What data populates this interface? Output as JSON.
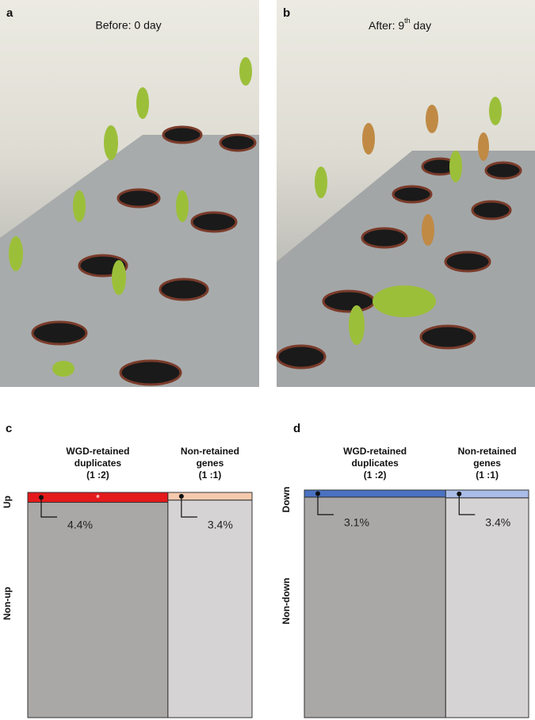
{
  "panels": [
    {
      "letter": "a",
      "caption": {
        "text": "Before: 0 day"
      }
    },
    {
      "letter": "b",
      "caption": {
        "text": "After: 9",
        "sup": "th",
        "tail": " day"
      }
    }
  ],
  "chart_data": [
    {
      "type": "mosaic",
      "letter": "c",
      "categories": [
        [
          "WGD-retained",
          "duplicates",
          "(1 :2)"
        ],
        [
          "Non-retained",
          "genes",
          "(1 :1)"
        ]
      ],
      "widths": [
        62.5,
        37.5
      ],
      "row_labels": [
        "Up",
        "Non-up"
      ],
      "values": [
        4.4,
        3.4
      ],
      "value_labels": [
        "4.4%",
        "3.4%"
      ],
      "colors": [
        "#e41a1c",
        "#f6c9ad"
      ],
      "rest_colors": [
        "#aaa7a7",
        "#d6d3d4"
      ],
      "annotation": "*"
    },
    {
      "type": "mosaic",
      "letter": "d",
      "categories": [
        [
          "WGD-retained",
          "duplicates",
          "(1 :2)"
        ],
        [
          "Non-retained",
          "genes",
          "(1 :1)"
        ]
      ],
      "widths": [
        63,
        37
      ],
      "row_labels": [
        "Down",
        "Non-down"
      ],
      "values": [
        3.1,
        3.4
      ],
      "value_labels": [
        "3.1%",
        "3.4%"
      ],
      "colors": [
        "#4a72c2",
        "#aabde8"
      ],
      "rest_colors": [
        "#aaa7a7",
        "#d6d3d4"
      ]
    }
  ]
}
